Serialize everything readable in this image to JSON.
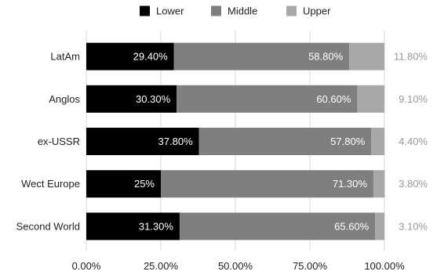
{
  "chart_data": {
    "type": "bar",
    "orientation": "horizontal",
    "stacked": true,
    "title": "",
    "xlabel": "",
    "ylabel": "",
    "categories": [
      "LatAm",
      "Anglos",
      "ex-USSR",
      "Wect Europe",
      "Second World"
    ],
    "series": [
      {
        "name": "Lower",
        "color": "#000000",
        "values": [
          29.4,
          30.3,
          37.8,
          25,
          31.3
        ],
        "labels": [
          "29.40%",
          "30.30%",
          "37.80%",
          "25%",
          "31.30%"
        ],
        "label_position": "inside"
      },
      {
        "name": "Middle",
        "color": "#7f7f7f",
        "values": [
          58.8,
          60.6,
          57.8,
          71.3,
          65.6
        ],
        "labels": [
          "58.80%",
          "60.60%",
          "57.80%",
          "71.30%",
          "65.60%"
        ],
        "label_position": "inside"
      },
      {
        "name": "Upper",
        "color": "#a8a8a8",
        "values": [
          11.8,
          9.1,
          4.4,
          3.8,
          3.1
        ],
        "labels": [
          "11.80%",
          "9.10%",
          "4.40%",
          "3.80%",
          "3.10%"
        ],
        "label_position": "outside"
      }
    ],
    "xlim": [
      0,
      100
    ],
    "x_ticks": [
      0,
      25,
      50,
      75,
      100
    ],
    "x_tick_labels": [
      "0.00%",
      "25.00%",
      "50.00%",
      "75.00%",
      "100.00%"
    ],
    "grid": "vertical",
    "legend": "top-center"
  }
}
